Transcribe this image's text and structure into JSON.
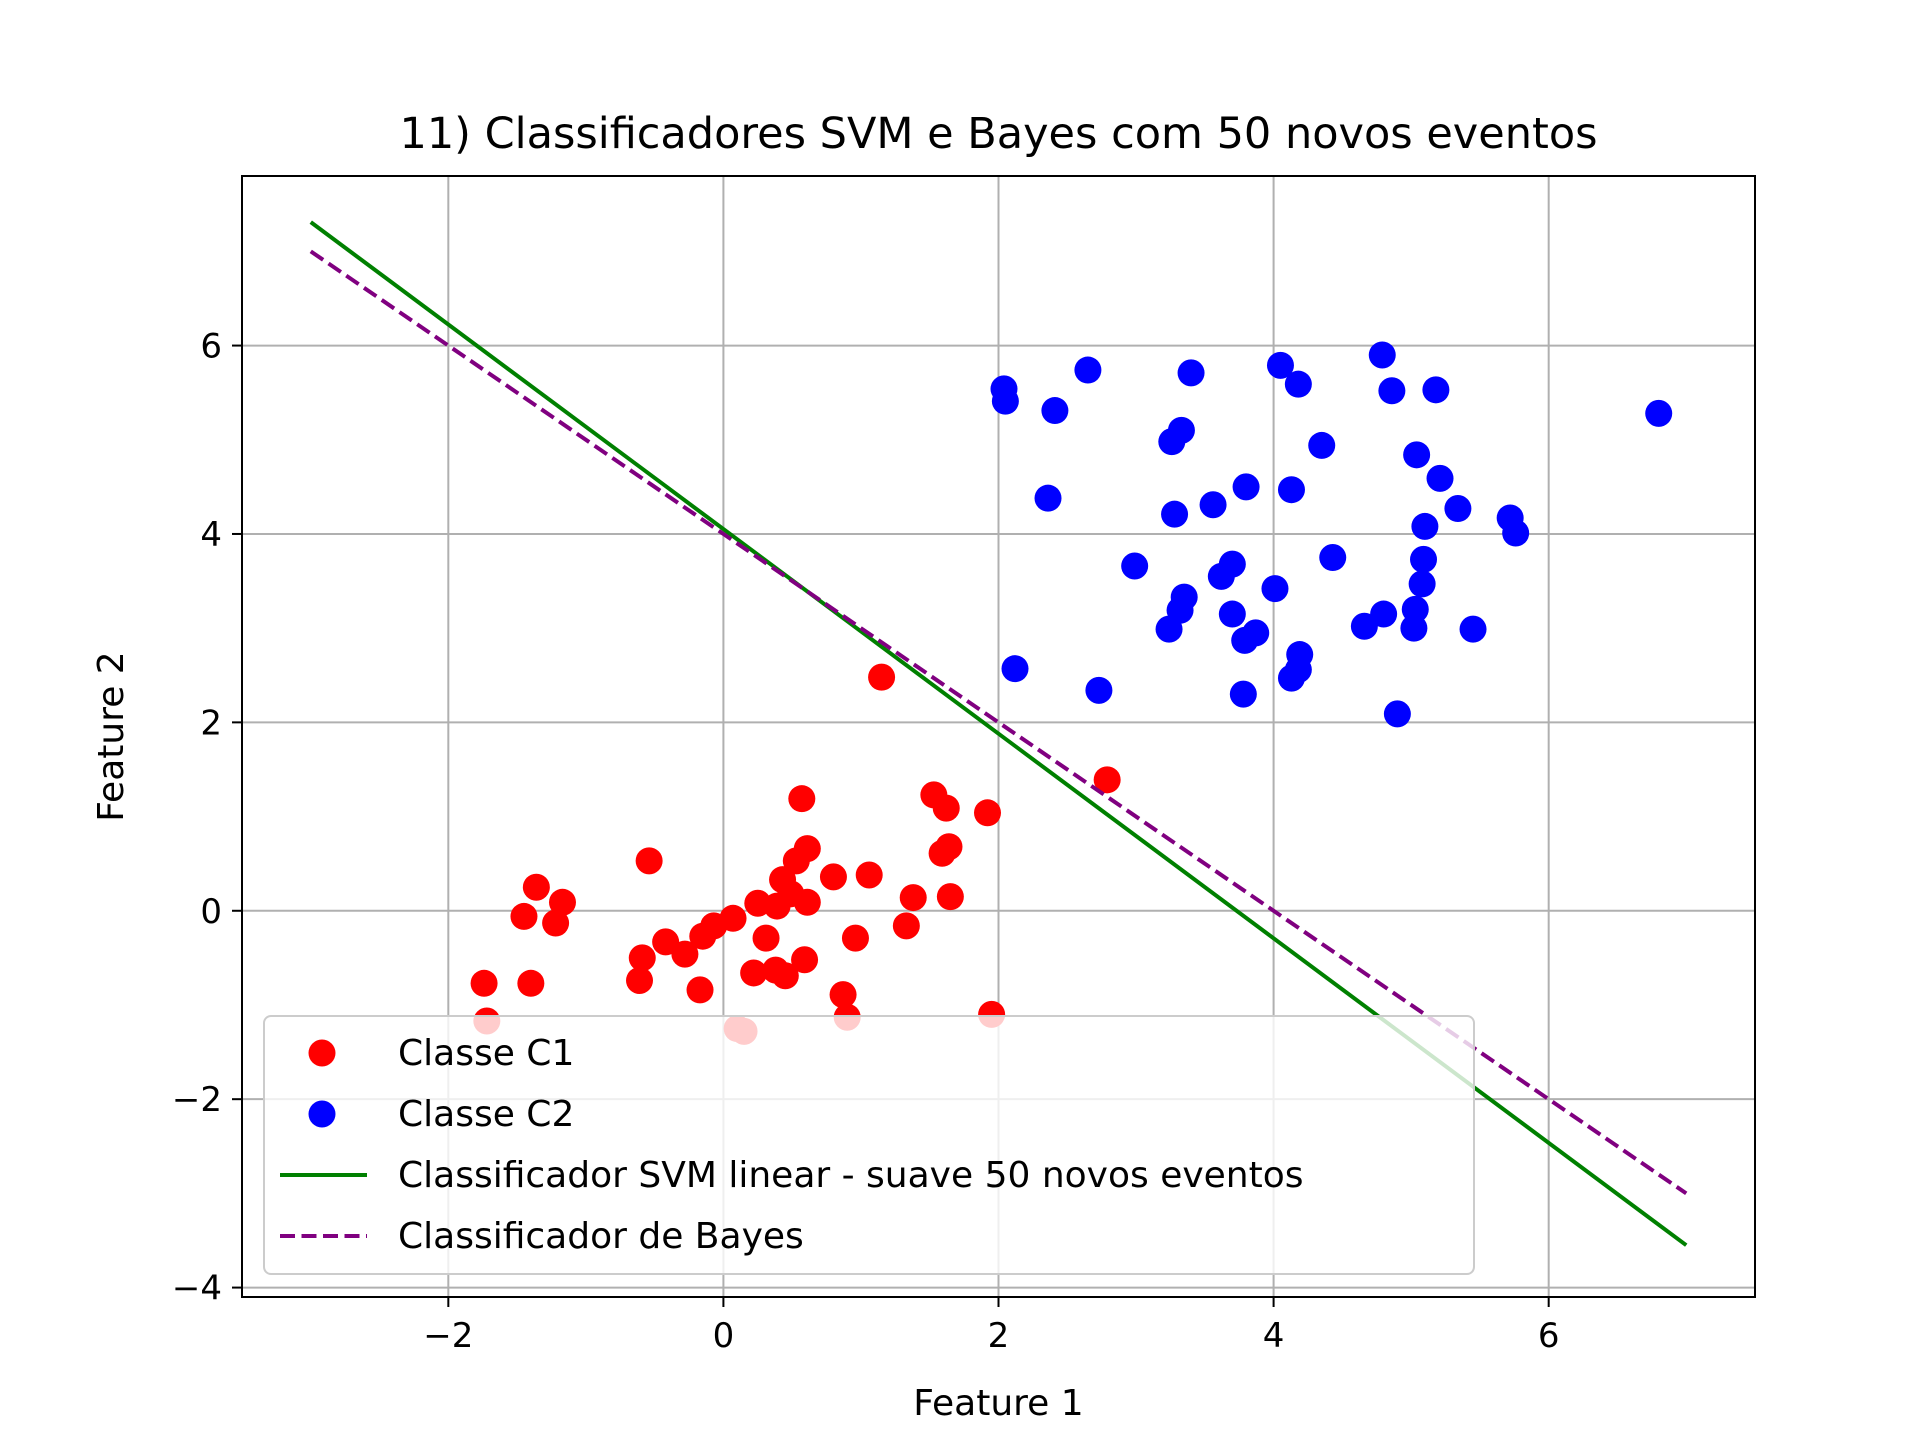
{
  "chart_data": {
    "type": "scatter",
    "title": "11) Classificadores SVM e Bayes com 50 novos eventos",
    "xlabel": "Feature 1",
    "ylabel": "Feature 2",
    "xlim": [
      -3.5,
      7.5
    ],
    "ylim": [
      -4.1,
      7.8
    ],
    "xticks": [
      -2,
      0,
      2,
      4,
      6
    ],
    "yticks": [
      -4,
      -2,
      0,
      2,
      4,
      6
    ],
    "xtick_labels": [
      "−2",
      "0",
      "2",
      "4",
      "6"
    ],
    "ytick_labels": [
      "−4",
      "−2",
      "0",
      "2",
      "4",
      "6"
    ],
    "grid": true,
    "legend_position": "lower-left",
    "series": [
      {
        "name": "Classe C1",
        "kind": "scatter",
        "color": "#ff0000",
        "points": [
          [
            1.15,
            2.48
          ],
          [
            2.79,
            1.39
          ],
          [
            0.57,
            1.19
          ],
          [
            1.53,
            1.23
          ],
          [
            1.62,
            1.09
          ],
          [
            1.92,
            1.04
          ],
          [
            -0.54,
            0.53
          ],
          [
            0.61,
            0.66
          ],
          [
            0.53,
            0.53
          ],
          [
            1.64,
            0.68
          ],
          [
            1.59,
            0.61
          ],
          [
            -1.36,
            0.25
          ],
          [
            -1.17,
            0.09
          ],
          [
            0.8,
            0.36
          ],
          [
            1.06,
            0.38
          ],
          [
            0.43,
            0.33
          ],
          [
            1.38,
            0.14
          ],
          [
            1.65,
            0.15
          ],
          [
            0.49,
            0.18
          ],
          [
            0.25,
            0.08
          ],
          [
            0.61,
            0.09
          ],
          [
            0.39,
            0.05
          ],
          [
            -1.45,
            -0.06
          ],
          [
            -1.22,
            -0.13
          ],
          [
            0.07,
            -0.08
          ],
          [
            -0.07,
            -0.16
          ],
          [
            1.33,
            -0.16
          ],
          [
            -0.15,
            -0.27
          ],
          [
            0.31,
            -0.29
          ],
          [
            0.96,
            -0.29
          ],
          [
            -0.42,
            -0.33
          ],
          [
            -0.59,
            -0.5
          ],
          [
            -0.28,
            -0.46
          ],
          [
            0.59,
            -0.52
          ],
          [
            0.38,
            -0.63
          ],
          [
            0.45,
            -0.69
          ],
          [
            0.22,
            -0.66
          ],
          [
            -1.74,
            -0.77
          ],
          [
            -1.4,
            -0.77
          ],
          [
            -0.61,
            -0.74
          ],
          [
            -0.17,
            -0.84
          ],
          [
            0.87,
            -0.89
          ],
          [
            1.95,
            -1.1
          ],
          [
            0.9,
            -1.13
          ],
          [
            -1.72,
            -1.17
          ],
          [
            0.1,
            -1.25
          ],
          [
            0.15,
            -1.28
          ]
        ]
      },
      {
        "name": "Classe C2",
        "kind": "scatter",
        "color": "#0000ff",
        "points": [
          [
            4.79,
            5.9
          ],
          [
            4.05,
            5.79
          ],
          [
            2.65,
            5.74
          ],
          [
            3.4,
            5.71
          ],
          [
            4.18,
            5.59
          ],
          [
            2.04,
            5.54
          ],
          [
            4.86,
            5.52
          ],
          [
            5.18,
            5.53
          ],
          [
            2.05,
            5.41
          ],
          [
            2.41,
            5.31
          ],
          [
            6.8,
            5.28
          ],
          [
            3.33,
            5.1
          ],
          [
            3.26,
            4.98
          ],
          [
            4.35,
            4.94
          ],
          [
            5.04,
            4.84
          ],
          [
            5.21,
            4.59
          ],
          [
            3.8,
            4.5
          ],
          [
            4.13,
            4.47
          ],
          [
            2.36,
            4.38
          ],
          [
            3.56,
            4.31
          ],
          [
            5.34,
            4.27
          ],
          [
            3.28,
            4.21
          ],
          [
            5.72,
            4.17
          ],
          [
            5.1,
            4.08
          ],
          [
            5.76,
            4.01
          ],
          [
            4.43,
            3.75
          ],
          [
            5.09,
            3.73
          ],
          [
            3.7,
            3.68
          ],
          [
            2.99,
            3.66
          ],
          [
            3.62,
            3.55
          ],
          [
            5.08,
            3.47
          ],
          [
            4.01,
            3.42
          ],
          [
            3.35,
            3.33
          ],
          [
            5.03,
            3.2
          ],
          [
            3.32,
            3.19
          ],
          [
            3.7,
            3.15
          ],
          [
            4.8,
            3.15
          ],
          [
            4.66,
            3.02
          ],
          [
            5.02,
            3.0
          ],
          [
            5.45,
            2.99
          ],
          [
            3.24,
            2.99
          ],
          [
            3.87,
            2.95
          ],
          [
            3.79,
            2.87
          ],
          [
            4.19,
            2.72
          ],
          [
            2.12,
            2.57
          ],
          [
            4.18,
            2.56
          ],
          [
            4.13,
            2.47
          ],
          [
            2.73,
            2.34
          ],
          [
            3.78,
            2.3
          ],
          [
            4.9,
            2.09
          ]
        ]
      },
      {
        "name": "Classificador SVM linear - suave 50 novos eventos",
        "kind": "line",
        "color": "#008000",
        "dashed": false,
        "x": [
          -3.0,
          7.0
        ],
        "y": [
          7.31,
          -3.55
        ]
      },
      {
        "name": "Classificador de Bayes",
        "kind": "line",
        "color": "#800080",
        "dashed": true,
        "x": [
          -3.0,
          7.0
        ],
        "y": [
          7.0,
          -3.0
        ]
      }
    ]
  }
}
